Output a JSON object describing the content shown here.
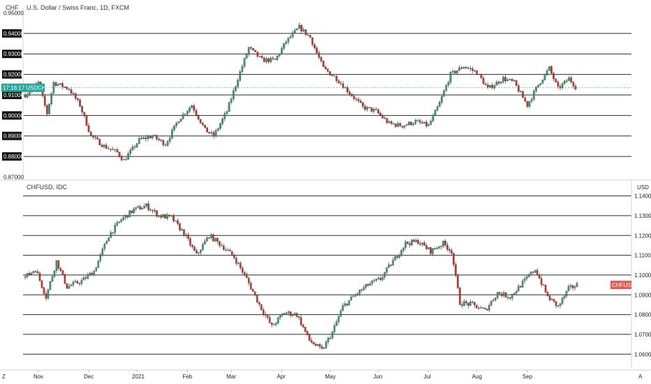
{
  "colors": {
    "up": "#3f9a72",
    "down": "#c0392b",
    "price_line": "#26a69a",
    "badge_dark": "#111111",
    "chf_badge": "#e05a4f"
  },
  "corner": {
    "left": "Z",
    "right": "A"
  },
  "chart_data": [
    {
      "type": "candlestick",
      "title": "U.S. Dollar / Swiss Franc, 1D, FXCM",
      "symbol_label": "USDCHF",
      "time_label": "17:16:17",
      "currency_label": "CHF",
      "yticks": [
        "0.95000",
        "0.94000",
        "0.93000",
        "0.92000",
        "0.91000",
        "0.90000",
        "0.89000",
        "0.88000",
        "0.87000"
      ],
      "ytick_values": [
        0.95,
        0.94,
        0.93,
        0.92,
        0.91,
        0.9,
        0.89,
        0.88,
        0.87
      ],
      "ylim": [
        0.8705,
        0.9505
      ],
      "grid_levels": [
        0.94,
        0.93,
        0.92,
        0.91,
        0.9,
        0.89,
        0.88
      ],
      "highlighted_ticks": [
        "0.94000",
        "0.93000",
        "0.92000",
        "0.91000",
        "0.90000",
        "0.89000",
        "0.88000"
      ],
      "last_price": 0.9135,
      "keypoints": [
        [
          0,
          0.91
        ],
        [
          6,
          0.916
        ],
        [
          10,
          0.901
        ],
        [
          13,
          0.916
        ],
        [
          20,
          0.913
        ],
        [
          25,
          0.905
        ],
        [
          30,
          0.89
        ],
        [
          36,
          0.885
        ],
        [
          42,
          0.882
        ],
        [
          45,
          0.878
        ],
        [
          52,
          0.888
        ],
        [
          58,
          0.89
        ],
        [
          64,
          0.886
        ],
        [
          70,
          0.898
        ],
        [
          76,
          0.905
        ],
        [
          82,
          0.893
        ],
        [
          86,
          0.89
        ],
        [
          92,
          0.902
        ],
        [
          97,
          0.918
        ],
        [
          102,
          0.933
        ],
        [
          108,
          0.927
        ],
        [
          114,
          0.927
        ],
        [
          119,
          0.936
        ],
        [
          125,
          0.943
        ],
        [
          130,
          0.938
        ],
        [
          136,
          0.923
        ],
        [
          142,
          0.918
        ],
        [
          148,
          0.911
        ],
        [
          154,
          0.904
        ],
        [
          160,
          0.902
        ],
        [
          166,
          0.896
        ],
        [
          172,
          0.895
        ],
        [
          178,
          0.897
        ],
        [
          184,
          0.895
        ],
        [
          189,
          0.906
        ],
        [
          194,
          0.92
        ],
        [
          200,
          0.924
        ],
        [
          206,
          0.921
        ],
        [
          211,
          0.913
        ],
        [
          218,
          0.918
        ],
        [
          223,
          0.916
        ],
        [
          229,
          0.905
        ],
        [
          234,
          0.915
        ],
        [
          239,
          0.923
        ],
        [
          243,
          0.913
        ],
        [
          248,
          0.918
        ],
        [
          251,
          0.914
        ]
      ]
    },
    {
      "type": "candlestick",
      "title": "CHFUSD, IDC",
      "symbol_label": "CHFUSD",
      "currency_label": "USD",
      "yticks": [
        "1.1400",
        "1.1300",
        "1.1200",
        "1.1100",
        "1.1000",
        "1.0900",
        "1.0800",
        "1.0700",
        "1.0600"
      ],
      "ytick_values": [
        1.14,
        1.13,
        1.12,
        1.11,
        1.1,
        1.09,
        1.08,
        1.07,
        1.06
      ],
      "ylim": [
        1.0555,
        1.1455
      ],
      "grid_levels": [
        1.14,
        1.13,
        1.12,
        1.11,
        1.1,
        1.09,
        1.08,
        1.07,
        1.06
      ],
      "last_price": 1.095,
      "keypoints": [
        [
          0,
          1.099
        ],
        [
          5,
          1.103
        ],
        [
          10,
          1.089
        ],
        [
          15,
          1.107
        ],
        [
          20,
          1.094
        ],
        [
          27,
          1.097
        ],
        [
          33,
          1.102
        ],
        [
          40,
          1.12
        ],
        [
          46,
          1.128
        ],
        [
          52,
          1.133
        ],
        [
          58,
          1.135
        ],
        [
          64,
          1.13
        ],
        [
          70,
          1.129
        ],
        [
          76,
          1.121
        ],
        [
          82,
          1.11
        ],
        [
          88,
          1.12
        ],
        [
          94,
          1.115
        ],
        [
          100,
          1.109
        ],
        [
          106,
          1.098
        ],
        [
          112,
          1.085
        ],
        [
          118,
          1.074
        ],
        [
          124,
          1.081
        ],
        [
          130,
          1.08
        ],
        [
          136,
          1.067
        ],
        [
          142,
          1.062
        ],
        [
          147,
          1.071
        ],
        [
          152,
          1.084
        ],
        [
          158,
          1.09
        ],
        [
          164,
          1.095
        ],
        [
          170,
          1.098
        ],
        [
          176,
          1.107
        ],
        [
          182,
          1.116
        ],
        [
          188,
          1.117
        ],
        [
          194,
          1.112
        ],
        [
          200,
          1.116
        ],
        [
          204,
          1.112
        ],
        [
          208,
          1.086
        ],
        [
          214,
          1.085
        ],
        [
          220,
          1.082
        ],
        [
          226,
          1.091
        ],
        [
          232,
          1.089
        ],
        [
          238,
          1.096
        ],
        [
          244,
          1.103
        ],
        [
          250,
          1.089
        ],
        [
          255,
          1.084
        ],
        [
          260,
          1.093
        ],
        [
          264,
          1.095
        ]
      ]
    }
  ],
  "x_axis": {
    "labels": [
      "Nov",
      "Dec",
      "2021",
      "Feb",
      "Mar",
      "Apr",
      "May",
      "Jun",
      "Jul",
      "Aug",
      "Sep"
    ],
    "bar_index": [
      6,
      29,
      51,
      74,
      94,
      117,
      139,
      161,
      184,
      206,
      229
    ],
    "total_bars": 255
  }
}
